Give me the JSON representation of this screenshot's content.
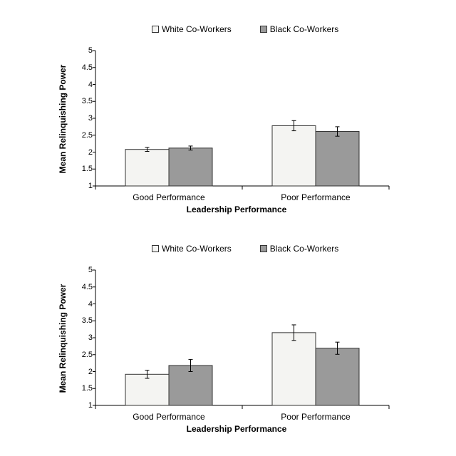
{
  "chart_data": [
    {
      "type": "bar",
      "title": "",
      "xlabel": "Leadership Performance",
      "ylabel": "Mean Relinquishing Power",
      "ylim": [
        1,
        5
      ],
      "yticks": [
        "1",
        "1.5",
        "2",
        "2.5",
        "3",
        "3.5",
        "4",
        "4.5",
        "5"
      ],
      "categories": [
        "Good Performance",
        "Poor Performance"
      ],
      "legend_position": "top",
      "series": [
        {
          "name": "White Co-Workers",
          "color": "#f4f4f2",
          "values": [
            2.08,
            2.78
          ],
          "error": [
            0.06,
            0.15
          ]
        },
        {
          "name": "Black Co-Workers",
          "color": "#9a9a9a",
          "values": [
            2.12,
            2.61
          ],
          "error": [
            0.06,
            0.14
          ]
        }
      ]
    },
    {
      "type": "bar",
      "title": "",
      "xlabel": "Leadership Performance",
      "ylabel": "Mean Relinquishing Power",
      "ylim": [
        1,
        5
      ],
      "yticks": [
        "1",
        "1.5",
        "2",
        "2.5",
        "3",
        "3.5",
        "4",
        "4.5",
        "5"
      ],
      "categories": [
        "Good Performance",
        "Poor Performance"
      ],
      "legend_position": "top",
      "series": [
        {
          "name": "White Co-Workers",
          "color": "#f4f4f2",
          "values": [
            1.92,
            3.15
          ],
          "error": [
            0.12,
            0.23
          ]
        },
        {
          "name": "Black Co-Workers",
          "color": "#9a9a9a",
          "values": [
            2.18,
            2.69
          ],
          "error": [
            0.18,
            0.18
          ]
        }
      ]
    }
  ]
}
